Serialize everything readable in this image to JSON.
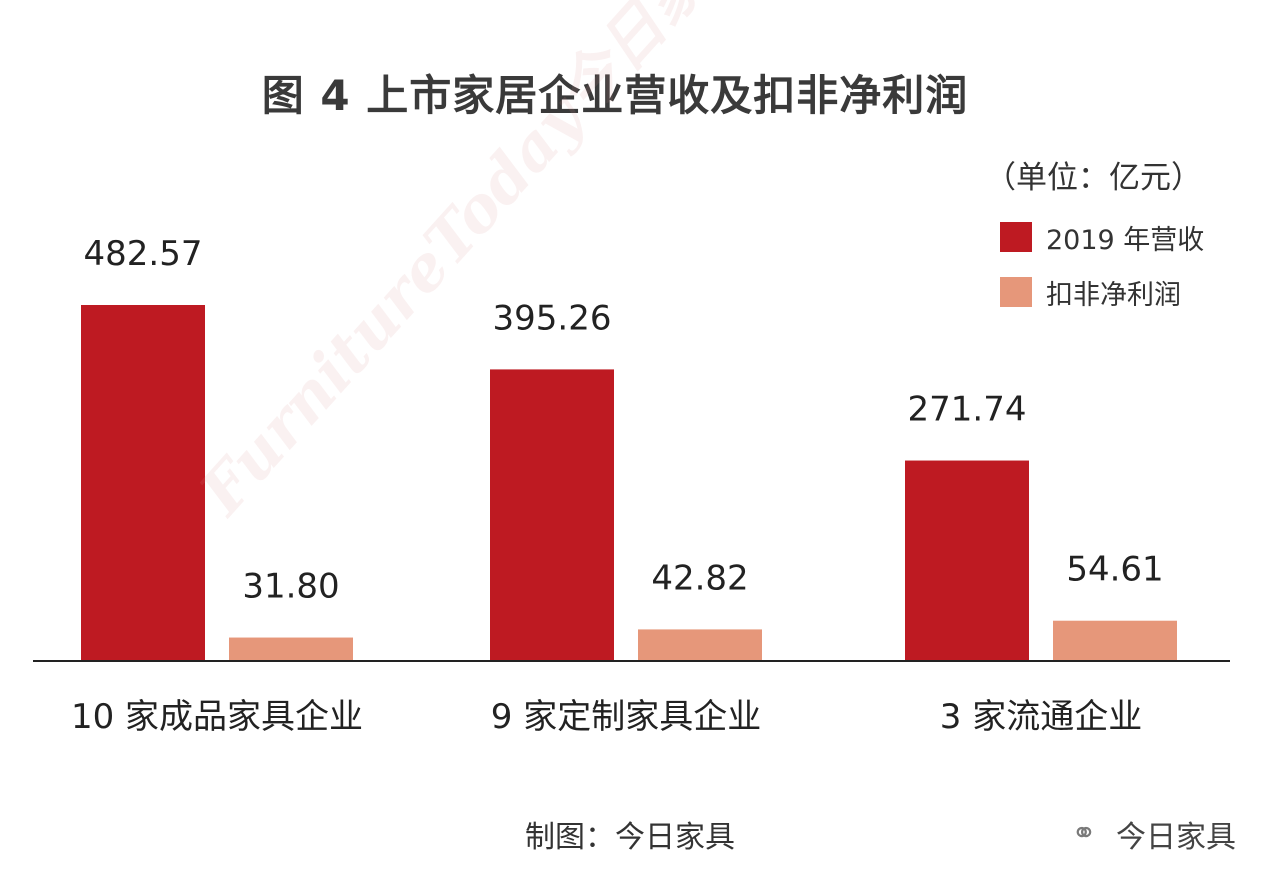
{
  "chart_data": {
    "type": "bar",
    "title": "图 4  上市家居企业营收及扣非净利润",
    "unit": "（单位：亿元）",
    "categories": [
      "10 家成品家具企业",
      "9 家定制家具企业",
      "3 家流通企业"
    ],
    "series": [
      {
        "name": "2019 年营收",
        "color": "#be1a22",
        "values": [
          482.57,
          395.26,
          271.74
        ],
        "labels": [
          "482.57",
          "395.26",
          "271.74"
        ]
      },
      {
        "name": "扣非净利润",
        "color": "#e6977a",
        "values": [
          31.8,
          42.82,
          54.61
        ],
        "labels": [
          "31.80",
          "42.82",
          "54.61"
        ]
      }
    ],
    "ylim": [
      0,
      482.57
    ],
    "legend": "top-right",
    "grid": false
  },
  "watermark_text": "FurnitureToday今日家具",
  "credit": "制图：今日家具",
  "wechat": {
    "icon": "wechat-icon",
    "name": "今日家具"
  }
}
